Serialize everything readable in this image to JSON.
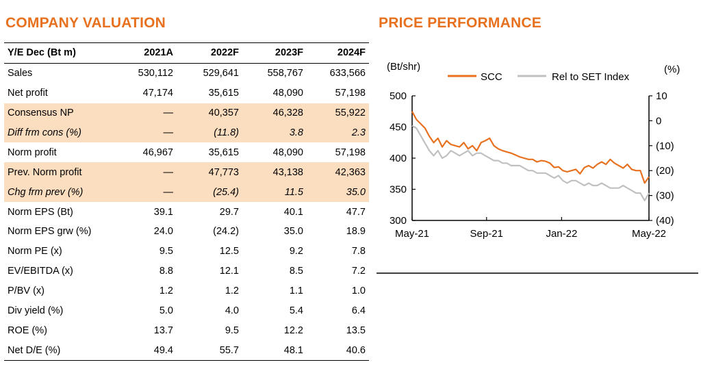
{
  "valuation": {
    "title": "COMPANY VALUATION",
    "header": [
      "Y/E Dec (Bt m)",
      "2021A",
      "2022F",
      "2023F",
      "2024F"
    ],
    "rows": [
      {
        "label": "Sales",
        "values": [
          "530,112",
          "529,641",
          "558,767",
          "633,566"
        ],
        "shade": false,
        "italic": false
      },
      {
        "label": "Net profit",
        "values": [
          "47,174",
          "35,615",
          "48,090",
          "57,198"
        ],
        "shade": false,
        "italic": false
      },
      {
        "label": "Consensus NP",
        "values": [
          "—",
          "40,357",
          "46,328",
          "55,922"
        ],
        "shade": true,
        "italic": false
      },
      {
        "label": "Diff frm cons (%)",
        "values": [
          "—",
          "(11.8)",
          "3.8",
          "2.3"
        ],
        "shade": true,
        "italic": true
      },
      {
        "label": "Norm profit",
        "values": [
          "46,967",
          "35,615",
          "48,090",
          "57,198"
        ],
        "shade": false,
        "italic": false
      },
      {
        "label": "Prev. Norm profit",
        "values": [
          "—",
          "47,773",
          "43,138",
          "42,363"
        ],
        "shade": true,
        "italic": false
      },
      {
        "label": "Chg frm prev (%)",
        "values": [
          "—",
          "(25.4)",
          "11.5",
          "35.0"
        ],
        "shade": true,
        "italic": true
      },
      {
        "label": "Norm EPS (Bt)",
        "values": [
          "39.1",
          "29.7",
          "40.1",
          "47.7"
        ],
        "shade": false,
        "italic": false
      },
      {
        "label": "Norm EPS grw (%)",
        "values": [
          "24.0",
          "(24.2)",
          "35.0",
          "18.9"
        ],
        "shade": false,
        "italic": false
      },
      {
        "label": "Norm PE (x)",
        "values": [
          "9.5",
          "12.5",
          "9.2",
          "7.8"
        ],
        "shade": false,
        "italic": false
      },
      {
        "label": "EV/EBITDA (x)",
        "values": [
          "8.8",
          "12.1",
          "8.5",
          "7.2"
        ],
        "shade": false,
        "italic": false
      },
      {
        "label": "P/BV (x)",
        "values": [
          "1.2",
          "1.2",
          "1.1",
          "1.0"
        ],
        "shade": false,
        "italic": false
      },
      {
        "label": "Div yield (%)",
        "values": [
          "5.0",
          "4.0",
          "5.4",
          "6.4"
        ],
        "shade": false,
        "italic": false
      },
      {
        "label": "ROE (%)",
        "values": [
          "13.7",
          "9.5",
          "12.2",
          "13.5"
        ],
        "shade": false,
        "italic": false
      },
      {
        "label": "Net D/E (%)",
        "values": [
          "49.4",
          "55.7",
          "48.1",
          "40.6"
        ],
        "shade": false,
        "italic": false
      }
    ],
    "colors": {
      "shade": "#fbddc0"
    }
  },
  "performance": {
    "title": "PRICE PERFORMANCE"
  },
  "chart_data": {
    "type": "line",
    "left_axis_label": "(Bt/shr)",
    "right_axis_label": "(%)",
    "left_ylim": [
      300,
      500
    ],
    "left_ticks": [
      "300",
      "350",
      "400",
      "450",
      "500"
    ],
    "right_ylim": [
      -40,
      10
    ],
    "right_ticks": [
      "(40)",
      "(30)",
      "(20)",
      "(10)",
      "0",
      "10"
    ],
    "x_ticks": [
      "May-21",
      "Sep-21",
      "Jan-22",
      "May-22"
    ],
    "grid": false,
    "legend_position": "top",
    "series": [
      {
        "name": "SCC",
        "axis": "left",
        "color": "#e8711f",
        "x": [
          "2021-05-03",
          "2021-05-10",
          "2021-05-17",
          "2021-05-24",
          "2021-05-31",
          "2021-06-07",
          "2021-06-14",
          "2021-06-21",
          "2021-06-28",
          "2021-07-05",
          "2021-07-12",
          "2021-07-19",
          "2021-07-26",
          "2021-08-02",
          "2021-08-09",
          "2021-08-16",
          "2021-08-23",
          "2021-08-30",
          "2021-09-06",
          "2021-09-13",
          "2021-09-20",
          "2021-09-27",
          "2021-10-04",
          "2021-10-11",
          "2021-10-18",
          "2021-10-25",
          "2021-11-01",
          "2021-11-08",
          "2021-11-15",
          "2021-11-22",
          "2021-11-29",
          "2021-12-06",
          "2021-12-13",
          "2021-12-20",
          "2021-12-27",
          "2022-01-03",
          "2022-01-10",
          "2022-01-17",
          "2022-01-24",
          "2022-01-31",
          "2022-02-07",
          "2022-02-14",
          "2022-02-21",
          "2022-02-28",
          "2022-03-07",
          "2022-03-14",
          "2022-03-21",
          "2022-03-28",
          "2022-04-04",
          "2022-04-11",
          "2022-04-18",
          "2022-04-25",
          "2022-05-02",
          "2022-05-09",
          "2022-05-16",
          "2022-05-23"
        ],
        "values": [
          475,
          462,
          455,
          448,
          435,
          425,
          432,
          418,
          428,
          422,
          420,
          418,
          425,
          415,
          420,
          412,
          425,
          428,
          432,
          420,
          415,
          412,
          410,
          408,
          405,
          402,
          400,
          398,
          398,
          394,
          396,
          395,
          392,
          385,
          386,
          380,
          378,
          380,
          382,
          375,
          385,
          388,
          384,
          390,
          394,
          390,
          398,
          392,
          388,
          384,
          390,
          382,
          380,
          380,
          360,
          370
        ]
      },
      {
        "name": "Rel to SET Index",
        "axis": "right",
        "color": "#c0c0c0",
        "x": [
          "2021-05-03",
          "2021-05-10",
          "2021-05-17",
          "2021-05-24",
          "2021-05-31",
          "2021-06-07",
          "2021-06-14",
          "2021-06-21",
          "2021-06-28",
          "2021-07-05",
          "2021-07-12",
          "2021-07-19",
          "2021-07-26",
          "2021-08-02",
          "2021-08-09",
          "2021-08-16",
          "2021-08-23",
          "2021-08-30",
          "2021-09-06",
          "2021-09-13",
          "2021-09-20",
          "2021-09-27",
          "2021-10-04",
          "2021-10-11",
          "2021-10-18",
          "2021-10-25",
          "2021-11-01",
          "2021-11-08",
          "2021-11-15",
          "2021-11-22",
          "2021-11-29",
          "2021-12-06",
          "2021-12-13",
          "2021-12-20",
          "2021-12-27",
          "2022-01-03",
          "2022-01-10",
          "2022-01-17",
          "2022-01-24",
          "2022-01-31",
          "2022-02-07",
          "2022-02-14",
          "2022-02-21",
          "2022-02-28",
          "2022-03-07",
          "2022-03-14",
          "2022-03-21",
          "2022-03-28",
          "2022-04-04",
          "2022-04-11",
          "2022-04-18",
          "2022-04-25",
          "2022-05-02",
          "2022-05-09",
          "2022-05-16",
          "2022-05-23"
        ],
        "values": [
          -2,
          -3,
          -6,
          -9,
          -12,
          -14,
          -12,
          -15,
          -14,
          -12,
          -13,
          -14,
          -13,
          -12,
          -14,
          -13,
          -13,
          -14,
          -15,
          -16,
          -16,
          -17,
          -17,
          -18,
          -18,
          -18,
          -19,
          -20,
          -20,
          -21,
          -21,
          -21,
          -22,
          -23,
          -22,
          -24,
          -25,
          -24,
          -24,
          -25,
          -26,
          -25,
          -26,
          -26,
          -25,
          -26,
          -27,
          -27,
          -27,
          -26,
          -27,
          -28,
          -29,
          -29,
          -32,
          -29
        ]
      }
    ]
  }
}
